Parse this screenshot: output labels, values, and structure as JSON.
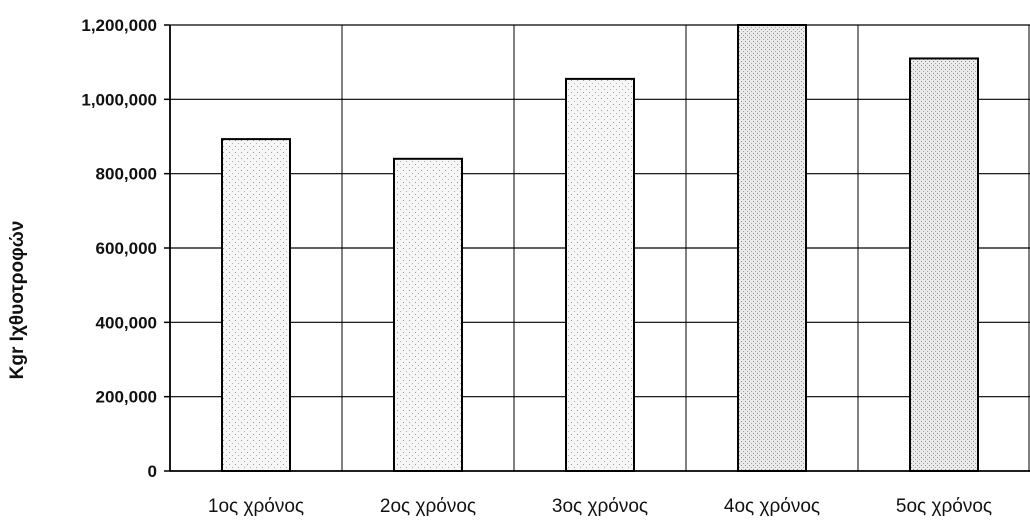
{
  "chart_data": {
    "type": "bar",
    "title": "",
    "xlabel": "",
    "ylabel": "Kgr Ιχθυοτροφών",
    "categories": [
      "1ος χρόνος",
      "2ος χρόνος",
      "3ος χρόνος",
      "4ος χρόνος",
      "5ος χρόνος"
    ],
    "values": [
      893000,
      840000,
      1055000,
      1200000,
      1110000
    ],
    "ylim": [
      0,
      1200000
    ],
    "yticks": [
      0,
      200000,
      400000,
      600000,
      800000,
      1000000,
      1200000
    ],
    "ytick_labels": [
      "0",
      "200,000",
      "400,000",
      "600,000",
      "800,000",
      "1,000,000",
      "1,200,000"
    ],
    "grid": true,
    "legend": "none",
    "colors": {
      "bar_fill": "#f4f4f4",
      "bar_stroke": "#000000",
      "grid": "#000000",
      "stipple": "#888888"
    }
  }
}
